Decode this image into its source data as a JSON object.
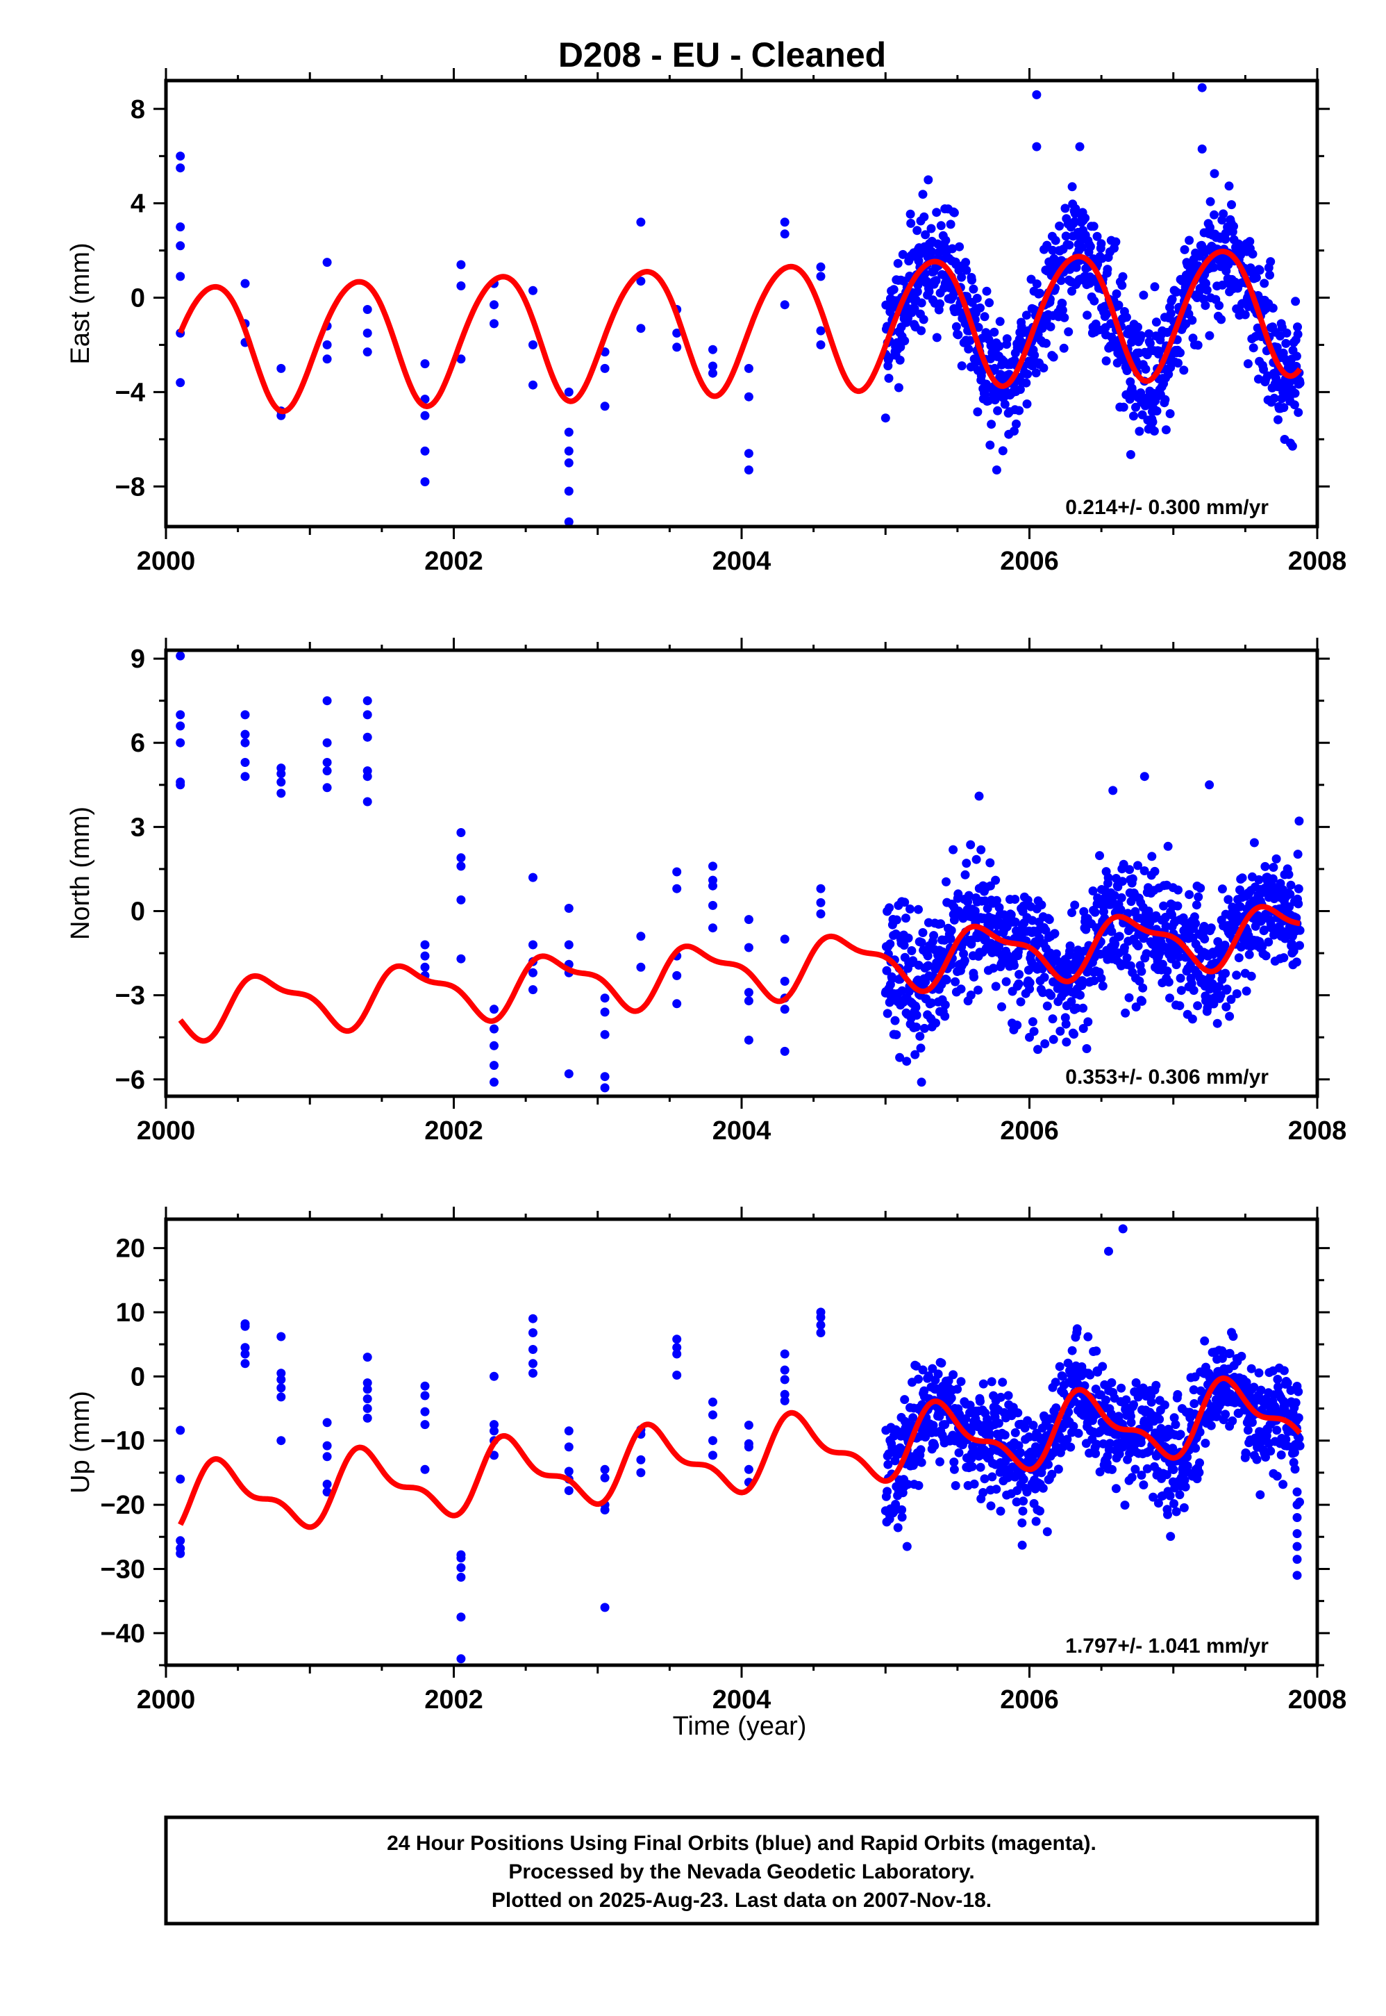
{
  "title": "D208  - EU - Cleaned",
  "x_axis_label": "Time (year)",
  "caption_lines": [
    "24 Hour Positions Using Final Orbits (blue) and Rapid Orbits (magenta).",
    "Processed by the Nevada Geodetic Laboratory.",
    "Plotted on 2025-Aug-23. Last data on 2007-Nov-18."
  ],
  "colors": {
    "points": "#0000ff",
    "model": "#ff0000",
    "axes": "#000000"
  },
  "chart_data": [
    {
      "type": "scatter",
      "name": "east",
      "ylabel": "East (mm)",
      "rate_label": "0.214+/- 0.300 mm/yr",
      "xlim": [
        2000.0,
        2008.0
      ],
      "ylim": [
        -9.7,
        9.2
      ],
      "xticks": [
        2000,
        2002,
        2004,
        2006,
        2008
      ],
      "yticks": [
        -8,
        -4,
        0,
        4,
        8
      ],
      "model": {
        "offset": -1.25,
        "rate": 0.214,
        "ann_cos": -1.2,
        "ann_sin": 2.4,
        "semi_cos": 0.2,
        "semi_sin": 0.1
      },
      "campaign_points": [
        [
          2000.1,
          6.0
        ],
        [
          2000.1,
          5.5
        ],
        [
          2000.1,
          3.0
        ],
        [
          2000.1,
          2.2
        ],
        [
          2000.1,
          0.9
        ],
        [
          2000.1,
          -1.5
        ],
        [
          2000.1,
          -3.6
        ],
        [
          2000.55,
          0.6
        ],
        [
          2000.55,
          -1.1
        ],
        [
          2000.55,
          -1.9
        ],
        [
          2000.8,
          -3.0
        ],
        [
          2000.8,
          -4.8
        ],
        [
          2000.8,
          -5.0
        ],
        [
          2001.12,
          1.5
        ],
        [
          2001.12,
          -1.2
        ],
        [
          2001.12,
          -2.0
        ],
        [
          2001.12,
          -2.6
        ],
        [
          2001.4,
          -0.5
        ],
        [
          2001.4,
          -1.5
        ],
        [
          2001.4,
          -2.3
        ],
        [
          2001.8,
          -2.8
        ],
        [
          2001.8,
          -4.3
        ],
        [
          2001.8,
          -5.0
        ],
        [
          2001.8,
          -6.5
        ],
        [
          2001.8,
          -7.8
        ],
        [
          2002.05,
          1.4
        ],
        [
          2002.05,
          0.5
        ],
        [
          2002.05,
          -2.6
        ],
        [
          2002.28,
          0.6
        ],
        [
          2002.28,
          -0.3
        ],
        [
          2002.28,
          -1.1
        ],
        [
          2002.55,
          0.3
        ],
        [
          2002.55,
          -2.0
        ],
        [
          2002.55,
          -3.7
        ],
        [
          2002.8,
          -4.0
        ],
        [
          2002.8,
          -5.7
        ],
        [
          2002.8,
          -6.5
        ],
        [
          2002.8,
          -7.0
        ],
        [
          2002.8,
          -8.2
        ],
        [
          2002.8,
          -9.5
        ],
        [
          2003.05,
          -2.3
        ],
        [
          2003.05,
          -3.0
        ],
        [
          2003.05,
          -4.6
        ],
        [
          2003.3,
          3.2
        ],
        [
          2003.3,
          0.7
        ],
        [
          2003.3,
          -1.3
        ],
        [
          2003.55,
          -0.5
        ],
        [
          2003.55,
          -1.5
        ],
        [
          2003.55,
          -2.1
        ],
        [
          2003.8,
          -2.2
        ],
        [
          2003.8,
          -2.9
        ],
        [
          2003.8,
          -3.2
        ],
        [
          2004.05,
          -3.0
        ],
        [
          2004.05,
          -4.2
        ],
        [
          2004.05,
          -6.6
        ],
        [
          2004.05,
          -7.3
        ],
        [
          2004.3,
          3.2
        ],
        [
          2004.3,
          2.7
        ],
        [
          2004.3,
          -0.3
        ],
        [
          2004.55,
          1.3
        ],
        [
          2004.55,
          0.9
        ],
        [
          2004.55,
          -1.4
        ],
        [
          2004.55,
          -2.0
        ]
      ],
      "continuous": {
        "start": 2005.0,
        "end": 2007.88,
        "count": 1000,
        "noise": 1.3,
        "seed": 11
      },
      "outliers": [
        [
          2006.05,
          8.6
        ],
        [
          2007.2,
          8.9
        ],
        [
          2006.05,
          6.4
        ],
        [
          2006.35,
          6.4
        ],
        [
          2007.2,
          6.3
        ],
        [
          2006.95,
          -5.6
        ],
        [
          2005.0,
          -5.1
        ]
      ]
    },
    {
      "type": "scatter",
      "name": "north",
      "ylabel": "North (mm)",
      "rate_label": "0.353+/- 0.306 mm/yr",
      "xlim": [
        2000.0,
        2008.0
      ],
      "ylim": [
        -6.6,
        9.3
      ],
      "xticks": [
        2000,
        2002,
        2004,
        2006,
        2008
      ],
      "yticks": [
        -6,
        -3,
        0,
        3,
        6,
        9
      ],
      "model": {
        "offset": -2.1,
        "rate": 0.353,
        "ann_cos": -0.2,
        "ann_sin": -0.9,
        "semi_cos": 0.3,
        "semi_sin": 0.2
      },
      "campaign_points": [
        [
          2000.1,
          9.1
        ],
        [
          2000.1,
          7.0
        ],
        [
          2000.1,
          6.6
        ],
        [
          2000.1,
          6.0
        ],
        [
          2000.1,
          4.6
        ],
        [
          2000.1,
          4.5
        ],
        [
          2000.55,
          7.0
        ],
        [
          2000.55,
          6.3
        ],
        [
          2000.55,
          6.0
        ],
        [
          2000.55,
          5.3
        ],
        [
          2000.55,
          4.8
        ],
        [
          2000.8,
          5.1
        ],
        [
          2000.8,
          4.9
        ],
        [
          2000.8,
          4.6
        ],
        [
          2000.8,
          4.2
        ],
        [
          2001.12,
          7.5
        ],
        [
          2001.12,
          6.0
        ],
        [
          2001.12,
          5.3
        ],
        [
          2001.12,
          5.0
        ],
        [
          2001.12,
          4.4
        ],
        [
          2001.4,
          7.5
        ],
        [
          2001.4,
          7.0
        ],
        [
          2001.4,
          6.2
        ],
        [
          2001.4,
          5.0
        ],
        [
          2001.4,
          4.8
        ],
        [
          2001.4,
          3.9
        ],
        [
          2001.8,
          -1.2
        ],
        [
          2001.8,
          -1.6
        ],
        [
          2001.8,
          -2.0
        ],
        [
          2001.8,
          -2.3
        ],
        [
          2002.05,
          2.8
        ],
        [
          2002.05,
          1.9
        ],
        [
          2002.05,
          1.6
        ],
        [
          2002.05,
          0.4
        ],
        [
          2002.05,
          -1.7
        ],
        [
          2002.28,
          -3.5
        ],
        [
          2002.28,
          -4.2
        ],
        [
          2002.28,
          -4.8
        ],
        [
          2002.28,
          -5.5
        ],
        [
          2002.28,
          -6.1
        ],
        [
          2002.55,
          1.2
        ],
        [
          2002.55,
          -1.2
        ],
        [
          2002.55,
          -1.8
        ],
        [
          2002.55,
          -2.2
        ],
        [
          2002.55,
          -2.8
        ],
        [
          2002.8,
          0.1
        ],
        [
          2002.8,
          -1.2
        ],
        [
          2002.8,
          -1.9
        ],
        [
          2002.8,
          -2.2
        ],
        [
          2002.8,
          -5.8
        ],
        [
          2003.05,
          -3.1
        ],
        [
          2003.05,
          -3.6
        ],
        [
          2003.05,
          -4.4
        ],
        [
          2003.05,
          -5.9
        ],
        [
          2003.05,
          -6.3
        ],
        [
          2003.3,
          -0.9
        ],
        [
          2003.3,
          -2.0
        ],
        [
          2003.55,
          1.4
        ],
        [
          2003.55,
          0.8
        ],
        [
          2003.55,
          -1.6
        ],
        [
          2003.55,
          -2.3
        ],
        [
          2003.55,
          -3.3
        ],
        [
          2003.8,
          1.6
        ],
        [
          2003.8,
          1.1
        ],
        [
          2003.8,
          0.9
        ],
        [
          2003.8,
          0.2
        ],
        [
          2003.8,
          -0.6
        ],
        [
          2004.05,
          -0.3
        ],
        [
          2004.05,
          -1.3
        ],
        [
          2004.05,
          -2.9
        ],
        [
          2004.05,
          -3.2
        ],
        [
          2004.05,
          -4.6
        ],
        [
          2004.3,
          -1.0
        ],
        [
          2004.3,
          -2.5
        ],
        [
          2004.3,
          -3.1
        ],
        [
          2004.3,
          -3.5
        ],
        [
          2004.3,
          -5.0
        ],
        [
          2004.55,
          0.8
        ],
        [
          2004.55,
          0.3
        ],
        [
          2004.55,
          -0.1
        ]
      ],
      "continuous": {
        "start": 2005.0,
        "end": 2007.88,
        "count": 1000,
        "noise": 1.15,
        "seed": 23
      },
      "outliers": [
        [
          2005.25,
          -6.1
        ],
        [
          2005.65,
          4.1
        ],
        [
          2006.58,
          4.3
        ],
        [
          2006.8,
          4.8
        ],
        [
          2007.25,
          4.5
        ],
        [
          2006.0,
          -4.5
        ],
        [
          2006.25,
          -3.8
        ]
      ]
    },
    {
      "type": "scatter",
      "name": "up",
      "ylabel": "Up (mm)",
      "rate_label": "1.797+/- 1.041 mm/yr",
      "xlim": [
        2000.0,
        2008.0
      ],
      "ylim": [
        -45.0,
        24.5
      ],
      "xticks": [
        2000,
        2002,
        2004,
        2006,
        2008
      ],
      "yticks": [
        -40,
        -30,
        -20,
        -10,
        0,
        10,
        20
      ],
      "model": {
        "offset": -12.5,
        "rate": 1.797,
        "ann_cos": -4.0,
        "ann_sin": 2.5,
        "semi_cos": -1.6,
        "semi_sin": -1.4
      },
      "campaign_points": [
        [
          2000.1,
          -8.4
        ],
        [
          2000.1,
          -16.0
        ],
        [
          2000.1,
          -25.6
        ],
        [
          2000.1,
          -26.8
        ],
        [
          2000.1,
          -27.6
        ],
        [
          2000.55,
          8.2
        ],
        [
          2000.55,
          7.8
        ],
        [
          2000.55,
          4.5
        ],
        [
          2000.55,
          3.5
        ],
        [
          2000.55,
          2.0
        ],
        [
          2000.8,
          6.2
        ],
        [
          2000.8,
          0.5
        ],
        [
          2000.8,
          -0.5
        ],
        [
          2000.8,
          -1.8
        ],
        [
          2000.8,
          -3.2
        ],
        [
          2000.8,
          -10.0
        ],
        [
          2001.12,
          -7.2
        ],
        [
          2001.12,
          -10.8
        ],
        [
          2001.12,
          -12.5
        ],
        [
          2001.12,
          -16.8
        ],
        [
          2001.12,
          -18.0
        ],
        [
          2001.4,
          3.0
        ],
        [
          2001.4,
          -1.0
        ],
        [
          2001.4,
          -2.0
        ],
        [
          2001.4,
          -3.5
        ],
        [
          2001.4,
          -5.0
        ],
        [
          2001.4,
          -6.5
        ],
        [
          2001.8,
          -1.5
        ],
        [
          2001.8,
          -3.0
        ],
        [
          2001.8,
          -5.5
        ],
        [
          2001.8,
          -7.5
        ],
        [
          2001.8,
          -14.5
        ],
        [
          2002.05,
          -27.8
        ],
        [
          2002.05,
          -28.3
        ],
        [
          2002.05,
          -29.8
        ],
        [
          2002.05,
          -31.3
        ],
        [
          2002.05,
          -37.5
        ],
        [
          2002.05,
          -44.0
        ],
        [
          2002.28,
          0.0
        ],
        [
          2002.28,
          -7.5
        ],
        [
          2002.28,
          -8.5
        ],
        [
          2002.28,
          -10.0
        ],
        [
          2002.28,
          -12.3
        ],
        [
          2002.55,
          9.0
        ],
        [
          2002.55,
          6.8
        ],
        [
          2002.55,
          4.2
        ],
        [
          2002.55,
          2.0
        ],
        [
          2002.55,
          0.5
        ],
        [
          2002.8,
          -8.5
        ],
        [
          2002.8,
          -11.0
        ],
        [
          2002.8,
          -14.8
        ],
        [
          2002.8,
          -16.0
        ],
        [
          2002.8,
          -17.8
        ],
        [
          2003.05,
          -14.5
        ],
        [
          2003.05,
          -15.8
        ],
        [
          2003.05,
          -20.0
        ],
        [
          2003.05,
          -20.8
        ],
        [
          2003.05,
          -36.0
        ],
        [
          2003.3,
          -8.3
        ],
        [
          2003.3,
          -9.0
        ],
        [
          2003.3,
          -13.0
        ],
        [
          2003.3,
          -15.0
        ],
        [
          2003.55,
          5.8
        ],
        [
          2003.55,
          4.5
        ],
        [
          2003.55,
          3.5
        ],
        [
          2003.55,
          0.2
        ],
        [
          2003.8,
          -4.0
        ],
        [
          2003.8,
          -6.0
        ],
        [
          2003.8,
          -10.0
        ],
        [
          2003.8,
          -12.3
        ],
        [
          2004.05,
          -7.6
        ],
        [
          2004.05,
          -10.5
        ],
        [
          2004.05,
          -11.0
        ],
        [
          2004.05,
          -14.5
        ],
        [
          2004.05,
          -16.5
        ],
        [
          2004.3,
          3.5
        ],
        [
          2004.3,
          1.0
        ],
        [
          2004.3,
          -0.5
        ],
        [
          2004.3,
          -2.8
        ],
        [
          2004.3,
          -3.8
        ],
        [
          2004.55,
          10.0
        ],
        [
          2004.55,
          9.2
        ],
        [
          2004.55,
          8.0
        ],
        [
          2004.55,
          6.8
        ]
      ],
      "continuous": {
        "start": 2005.0,
        "end": 2007.88,
        "count": 1000,
        "noise": 4.2,
        "seed": 37
      },
      "outliers": [
        [
          2005.15,
          -26.5
        ],
        [
          2005.8,
          -21.0
        ],
        [
          2005.95,
          -26.3
        ],
        [
          2006.65,
          23.0
        ],
        [
          2006.55,
          19.5
        ],
        [
          2007.86,
          -18.0
        ],
        [
          2007.86,
          -20.0
        ],
        [
          2007.86,
          -22.0
        ],
        [
          2007.86,
          -24.5
        ],
        [
          2007.86,
          -26.5
        ],
        [
          2007.86,
          -28.5
        ],
        [
          2007.86,
          -31.0
        ]
      ]
    }
  ]
}
